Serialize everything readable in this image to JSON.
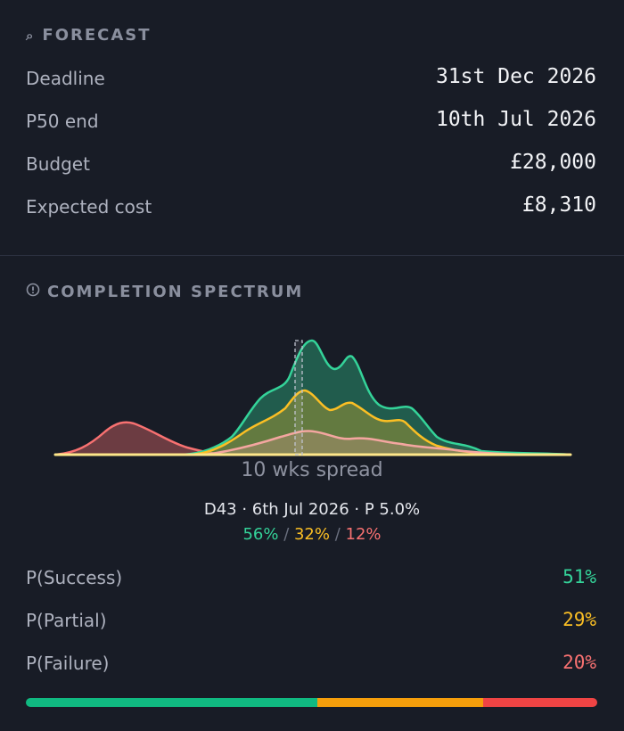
{
  "forecast": {
    "title": "FORECAST",
    "rows": [
      {
        "label": "Deadline",
        "value": "31st Dec 2026"
      },
      {
        "label": "P50 end",
        "value": "10th Jul 2026"
      },
      {
        "label": "Budget",
        "value": "£28,000"
      },
      {
        "label": "Expected cost",
        "value": "£8,310"
      }
    ]
  },
  "spectrum": {
    "title": "COMPLETION SPECTRUM",
    "spread_label": "10 wks spread",
    "selected": "D43 · 6th Jul 2026 · P 5.0%",
    "selected_split": {
      "success": "56%",
      "partial": "32%",
      "failure": "12%",
      "separator": " / "
    }
  },
  "probabilities": [
    {
      "label": "P(Success)",
      "value": "51%",
      "fraction": 0.51,
      "color": "#34d399"
    },
    {
      "label": "P(Partial)",
      "value": "29%",
      "fraction": 0.29,
      "color": "#fbbf24"
    },
    {
      "label": "P(Failure)",
      "value": "20%",
      "fraction": 0.2,
      "color": "#f87171"
    }
  ],
  "colors": {
    "success": "#34d399",
    "partial": "#fbbf24",
    "failure": "#f87171",
    "bar_success": "#10b981",
    "bar_partial": "#f59e0b",
    "bar_failure": "#ef4444"
  },
  "icons": {
    "forecast": "search-icon",
    "spectrum": "info-circle-icon"
  }
}
